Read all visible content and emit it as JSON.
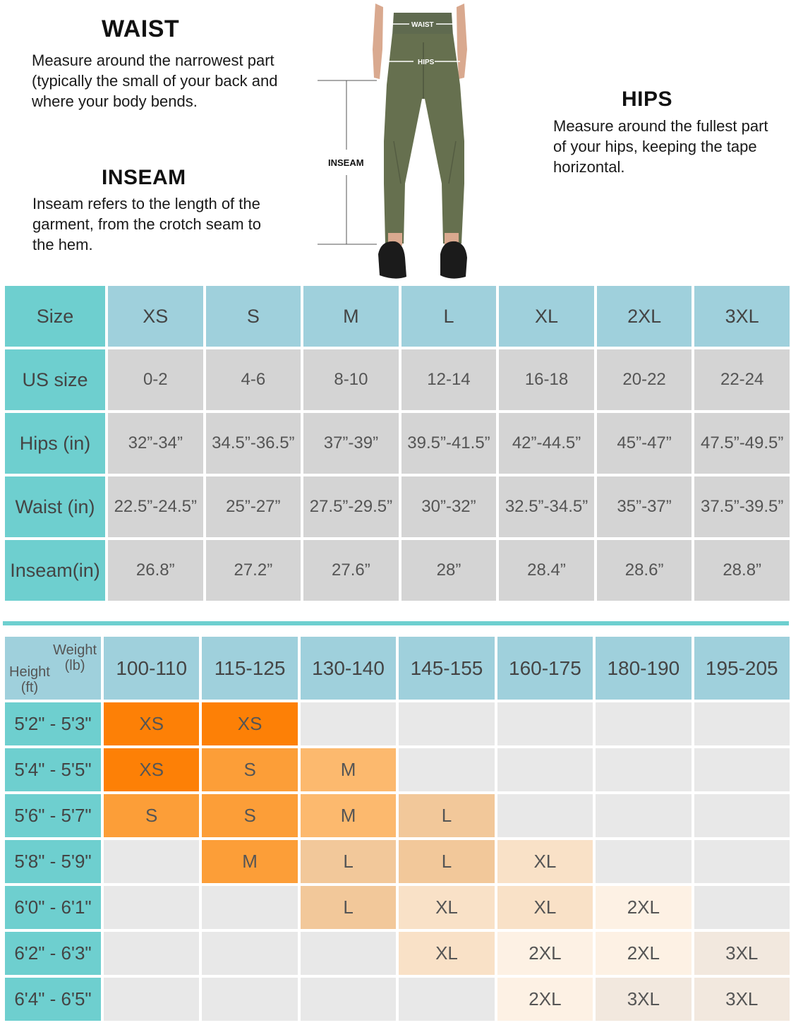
{
  "waist": {
    "title": "WAIST",
    "description": "Measure around the narrowest part (typically the small of your back and where your body bends."
  },
  "inseam": {
    "title": "INSEAM",
    "description": "Inseam refers to the length of the garment, from the crotch seam to the hem."
  },
  "hips": {
    "title": "HIPS",
    "description": "Measure around the fullest part of your hips, keeping the tape horizontal."
  },
  "figure": {
    "waist_label": "WAIST",
    "hips_label": "HIPS",
    "inseam_label": "INSEAM"
  },
  "colors": {
    "teal": "#6ecfcf",
    "light_blue": "#9fd0dc",
    "grey": "#d4d4d4",
    "orange": "#fd8006"
  },
  "size_chart": {
    "rows": [
      {
        "label": "Size",
        "values": [
          "XS",
          "S",
          "M",
          "L",
          "XL",
          "2XL",
          "3XL"
        ]
      },
      {
        "label": "US size",
        "values": [
          "0-2",
          "4-6",
          "8-10",
          "12-14",
          "16-18",
          "20-22",
          "22-24"
        ]
      },
      {
        "label": "Hips (in)",
        "values": [
          "32”-34”",
          "34.5”-36.5”",
          "37”-39”",
          "39.5”-41.5”",
          "42”-44.5”",
          "45”-47”",
          "47.5”-49.5”"
        ]
      },
      {
        "label": "Waist (in)",
        "values": [
          "22.5”-24.5”",
          "25”-27”",
          "27.5”-29.5”",
          "30”-32”",
          "32.5”-34.5”",
          "35”-37”",
          "37.5”-39.5”"
        ]
      },
      {
        "label": "Inseam(in)",
        "values": [
          "26.8”",
          "27.2”",
          "27.6”",
          "28”",
          "28.4”",
          "28.6”",
          "28.8”"
        ]
      }
    ]
  },
  "height_weight_chart": {
    "corner_weight": "Weight",
    "corner_weight_unit": "(lb)",
    "corner_height": "Height",
    "corner_height_unit": "(ft)",
    "weights": [
      "100-110",
      "115-125",
      "130-140",
      "145-155",
      "160-175",
      "180-190",
      "195-205"
    ],
    "rows": [
      {
        "height": "5'2\" - 5'3\"",
        "cells": [
          "XS",
          "XS",
          "",
          "",
          "",
          "",
          ""
        ]
      },
      {
        "height": "5'4\" - 5'5\"",
        "cells": [
          "XS",
          "S",
          "M",
          "",
          "",
          "",
          ""
        ]
      },
      {
        "height": "5'6\" - 5'7\"",
        "cells": [
          "S",
          "S",
          "M",
          "L",
          "",
          "",
          ""
        ]
      },
      {
        "height": "5'8\" - 5'9\"",
        "cells": [
          "",
          "M",
          "L",
          "L",
          "XL",
          "",
          ""
        ]
      },
      {
        "height": "6'0\" - 6'1\"",
        "cells": [
          "",
          "",
          "L",
          "XL",
          "XL",
          "2XL",
          ""
        ]
      },
      {
        "height": "6'2\" - 6'3\"",
        "cells": [
          "",
          "",
          "",
          "XL",
          "2XL",
          "2XL",
          "3XL"
        ]
      },
      {
        "height": "6'4\" - 6'5\"",
        "cells": [
          "",
          "",
          "",
          "",
          "2XL",
          "3XL",
          "3XL"
        ]
      }
    ]
  }
}
